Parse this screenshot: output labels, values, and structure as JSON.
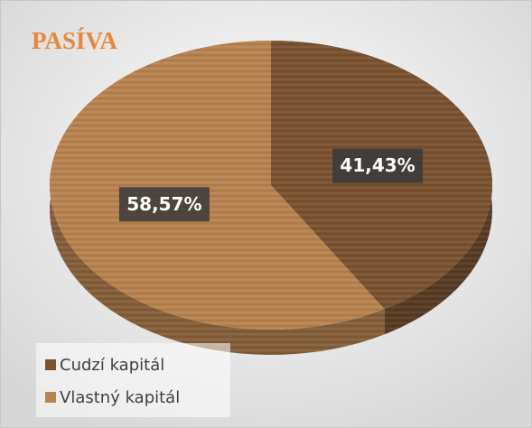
{
  "chart_data": {
    "type": "pie",
    "title": "PASÍVA",
    "categories": [
      "Cudzí kapitál",
      "Vlastný kapitál"
    ],
    "values": [
      41.43,
      58.57
    ],
    "value_labels": [
      "41,43%",
      "58,57%"
    ],
    "colors": [
      "#7a5230",
      "#b8834f"
    ],
    "legend": "bottom-left"
  }
}
